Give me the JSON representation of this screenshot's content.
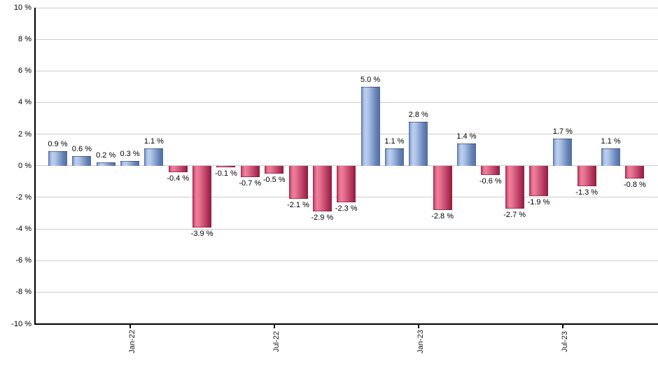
{
  "chart_data": {
    "type": "bar",
    "title": "",
    "xlabel": "",
    "ylabel": "",
    "ylim": [
      -10,
      10
    ],
    "y_step": 2,
    "grid": true,
    "legend": "none",
    "unit_suffix": " %",
    "values": [
      0.9,
      0.6,
      0.2,
      0.3,
      1.1,
      -0.4,
      -3.9,
      -0.1,
      -0.7,
      -0.5,
      -2.1,
      -2.9,
      -2.3,
      5.0,
      1.1,
      2.8,
      -2.8,
      1.4,
      -0.6,
      -2.7,
      -1.9,
      1.7,
      -1.3,
      1.1,
      -0.8
    ],
    "value_labels": [
      "0.9 %",
      "0.6 %",
      "0.2 %",
      "0.3 %",
      "1.1 %",
      "-0.4 %",
      "-3.9 %",
      "-0.1 %",
      "-0.7 %",
      "-0.5 %",
      "-2.1 %",
      "-2.9 %",
      "-2.3 %",
      "5.0 %",
      "1.1 %",
      "2.8 %",
      "-2.8 %",
      "1.4 %",
      "-0.6 %",
      "-2.7 %",
      "-1.9 %",
      "1.7 %",
      "-1.3 %",
      "1.1 %",
      "-0.8 %"
    ],
    "y_tick_labels": [
      "10 %",
      "8 %",
      "6 %",
      "4 %",
      "2 %",
      "0 %",
      "-2 %",
      "-4 %",
      "-6 %",
      "-8 %",
      "-10 %"
    ],
    "x_ticks": [
      {
        "label": "Jan-22",
        "bar_index": 3
      },
      {
        "label": "Jul-22",
        "bar_index": 9
      },
      {
        "label": "Jan-23",
        "bar_index": 15
      },
      {
        "label": "Jul-23",
        "bar_index": 21
      }
    ]
  },
  "chart_style": {
    "background": "#ffffff",
    "grid_color": "#cccccc",
    "axis_color": "#000000",
    "label_color": "#000000",
    "positive_stops": [
      "#4a6b9f 0%",
      "#9db3dd 10%",
      "#bccfee 22%",
      "#b0c5e9 36%",
      "#8aa3cf 58%",
      "#6783b6 78%",
      "#4f6da0 100%"
    ],
    "negative_stops": [
      "#9b2147 0%",
      "#d96080 10%",
      "#ee7f99 22%",
      "#e67291 36%",
      "#ca4f73 60%",
      "#ab3156 82%",
      "#8f1d41 100%"
    ]
  }
}
